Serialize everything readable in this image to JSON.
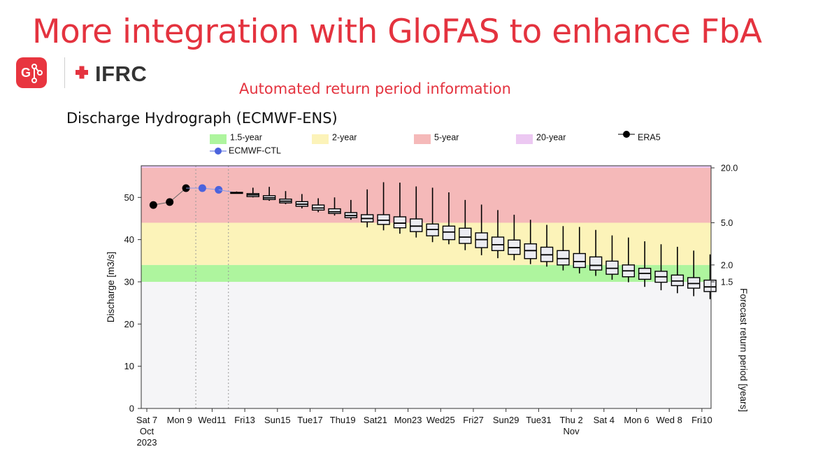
{
  "slide": {
    "title": "More integration with GloFAS to enhance FbA",
    "subtitle": "Automated return period information",
    "logo_text": "IFRC",
    "glofas_logo_text": "G"
  },
  "colors": {
    "accent": "#e4333f",
    "band_1_5": "#aef59e",
    "band_2": "#fcf3b9",
    "band_5": "#f5b9b9",
    "band_20": "#ecc8f2",
    "plot_bg": "#f5f5f7",
    "era5": "#000000",
    "ctl": "#4b63dd"
  },
  "chart_data": {
    "type": "box",
    "title": "Discharge Hydrograph (ECMWF-ENS)",
    "ylabel": "Discharge [m3/s]",
    "y2label": "Forecast return period [years]",
    "ylim": [
      0,
      57.5
    ],
    "yticks": [
      0,
      10,
      20,
      30,
      40,
      50
    ],
    "xlim": [
      0,
      34.5
    ],
    "xticks": [
      {
        "x": 0,
        "lines": [
          "Sat 7",
          "Oct",
          "2023"
        ]
      },
      {
        "x": 2,
        "lines": [
          "Mon 9"
        ]
      },
      {
        "x": 4,
        "lines": [
          "Wed11"
        ]
      },
      {
        "x": 6,
        "lines": [
          "Fri13"
        ]
      },
      {
        "x": 8,
        "lines": [
          "Sun15"
        ]
      },
      {
        "x": 10,
        "lines": [
          "Tue17"
        ]
      },
      {
        "x": 12,
        "lines": [
          "Thu19"
        ]
      },
      {
        "x": 14,
        "lines": [
          "Sat21"
        ]
      },
      {
        "x": 16,
        "lines": [
          "Mon23"
        ]
      },
      {
        "x": 18,
        "lines": [
          "Wed25"
        ]
      },
      {
        "x": 20,
        "lines": [
          "Fri27"
        ]
      },
      {
        "x": 22,
        "lines": [
          "Sun29"
        ]
      },
      {
        "x": 24,
        "lines": [
          "Tue31"
        ]
      },
      {
        "x": 26,
        "lines": [
          "Thu 2",
          "Nov"
        ]
      },
      {
        "x": 28,
        "lines": [
          "Sat 4"
        ]
      },
      {
        "x": 30,
        "lines": [
          "Mon 6"
        ]
      },
      {
        "x": 32,
        "lines": [
          "Wed 8"
        ]
      },
      {
        "x": 34,
        "lines": [
          "Fri10"
        ]
      }
    ],
    "thresholds": [
      {
        "name": "1.5-year",
        "value": 30,
        "label": "1.5"
      },
      {
        "name": "2-year",
        "value": 34,
        "label": "2.0"
      },
      {
        "name": "5-year",
        "value": 44,
        "label": "5.0"
      },
      {
        "name": "20-year",
        "value": 57,
        "label": "20.0"
      }
    ],
    "legend": [
      "1.5-year",
      "2-year",
      "5-year",
      "20-year",
      "ERA5",
      "ECMWF-CTL"
    ],
    "vlines": [
      3,
      5
    ],
    "era5": [
      {
        "x": 0.4,
        "y": 48.2
      },
      {
        "x": 1.4,
        "y": 48.9
      },
      {
        "x": 2.4,
        "y": 52.2
      }
    ],
    "ctl": [
      {
        "x": 3.4,
        "y": 52.2
      },
      {
        "x": 4.4,
        "y": 51.8
      }
    ],
    "boxes": [
      {
        "x": 5.5,
        "min": 50.9,
        "q1": 51.0,
        "med": 51.1,
        "q3": 51.2,
        "max": 51.4
      },
      {
        "x": 6.5,
        "min": 50.0,
        "q1": 50.2,
        "med": 50.6,
        "q3": 50.9,
        "max": 52.3
      },
      {
        "x": 7.5,
        "min": 49.2,
        "q1": 49.5,
        "med": 49.9,
        "q3": 50.4,
        "max": 52.5
      },
      {
        "x": 8.5,
        "min": 48.4,
        "q1": 48.7,
        "med": 49.1,
        "q3": 49.6,
        "max": 51.5
      },
      {
        "x": 9.5,
        "min": 47.4,
        "q1": 47.9,
        "med": 48.4,
        "q3": 49.0,
        "max": 50.8
      },
      {
        "x": 10.5,
        "min": 46.5,
        "q1": 47.0,
        "med": 47.5,
        "q3": 48.2,
        "max": 49.8
      },
      {
        "x": 11.5,
        "min": 45.7,
        "q1": 46.2,
        "med": 46.6,
        "q3": 47.3,
        "max": 50.0
      },
      {
        "x": 12.5,
        "min": 44.7,
        "q1": 45.2,
        "med": 45.7,
        "q3": 46.4,
        "max": 49.4
      },
      {
        "x": 13.5,
        "min": 42.9,
        "q1": 44.2,
        "med": 45.0,
        "q3": 45.9,
        "max": 51.9
      },
      {
        "x": 14.5,
        "min": 42.2,
        "q1": 43.6,
        "med": 44.6,
        "q3": 45.9,
        "max": 53.6
      },
      {
        "x": 15.5,
        "min": 41.4,
        "q1": 42.8,
        "med": 43.9,
        "q3": 45.4,
        "max": 53.5
      },
      {
        "x": 16.5,
        "min": 40.5,
        "q1": 41.9,
        "med": 43.2,
        "q3": 44.9,
        "max": 52.6
      },
      {
        "x": 17.5,
        "min": 39.4,
        "q1": 40.9,
        "med": 42.4,
        "q3": 43.7,
        "max": 52.3
      },
      {
        "x": 18.5,
        "min": 38.9,
        "q1": 40.0,
        "med": 41.8,
        "q3": 43.2,
        "max": 51.2
      },
      {
        "x": 19.5,
        "min": 37.5,
        "q1": 39.1,
        "med": 40.6,
        "q3": 42.7,
        "max": 49.4
      },
      {
        "x": 20.5,
        "min": 36.3,
        "q1": 38.1,
        "med": 40.0,
        "q3": 41.6,
        "max": 48.3
      },
      {
        "x": 21.5,
        "min": 35.6,
        "q1": 37.4,
        "med": 38.8,
        "q3": 40.6,
        "max": 47.0
      },
      {
        "x": 22.5,
        "min": 35.1,
        "q1": 36.5,
        "med": 38.1,
        "q3": 39.9,
        "max": 45.9
      },
      {
        "x": 23.5,
        "min": 34.2,
        "q1": 35.5,
        "med": 37.4,
        "q3": 39.0,
        "max": 44.7
      },
      {
        "x": 24.5,
        "min": 33.6,
        "q1": 34.8,
        "med": 36.4,
        "q3": 38.2,
        "max": 43.5
      },
      {
        "x": 25.5,
        "min": 32.7,
        "q1": 34.0,
        "med": 35.5,
        "q3": 37.4,
        "max": 43.2
      },
      {
        "x": 26.5,
        "min": 32.0,
        "q1": 33.4,
        "med": 34.8,
        "q3": 36.7,
        "max": 43.0
      },
      {
        "x": 27.5,
        "min": 31.4,
        "q1": 32.8,
        "med": 33.9,
        "q3": 35.9,
        "max": 42.3
      },
      {
        "x": 28.5,
        "min": 30.5,
        "q1": 31.8,
        "med": 33.2,
        "q3": 34.9,
        "max": 41.0
      },
      {
        "x": 29.5,
        "min": 29.9,
        "q1": 31.2,
        "med": 32.6,
        "q3": 34.0,
        "max": 40.5
      },
      {
        "x": 30.5,
        "min": 28.8,
        "q1": 30.6,
        "med": 32.0,
        "q3": 33.2,
        "max": 39.6
      },
      {
        "x": 31.5,
        "min": 28.0,
        "q1": 29.9,
        "med": 31.2,
        "q3": 32.5,
        "max": 38.9
      },
      {
        "x": 32.5,
        "min": 27.3,
        "q1": 29.1,
        "med": 30.2,
        "q3": 31.6,
        "max": 38.3
      },
      {
        "x": 33.5,
        "min": 26.6,
        "q1": 28.5,
        "med": 29.6,
        "q3": 31.0,
        "max": 37.4
      },
      {
        "x": 34.5,
        "min": 25.9,
        "q1": 27.7,
        "med": 28.8,
        "q3": 30.4,
        "max": 36.5
      }
    ]
  }
}
